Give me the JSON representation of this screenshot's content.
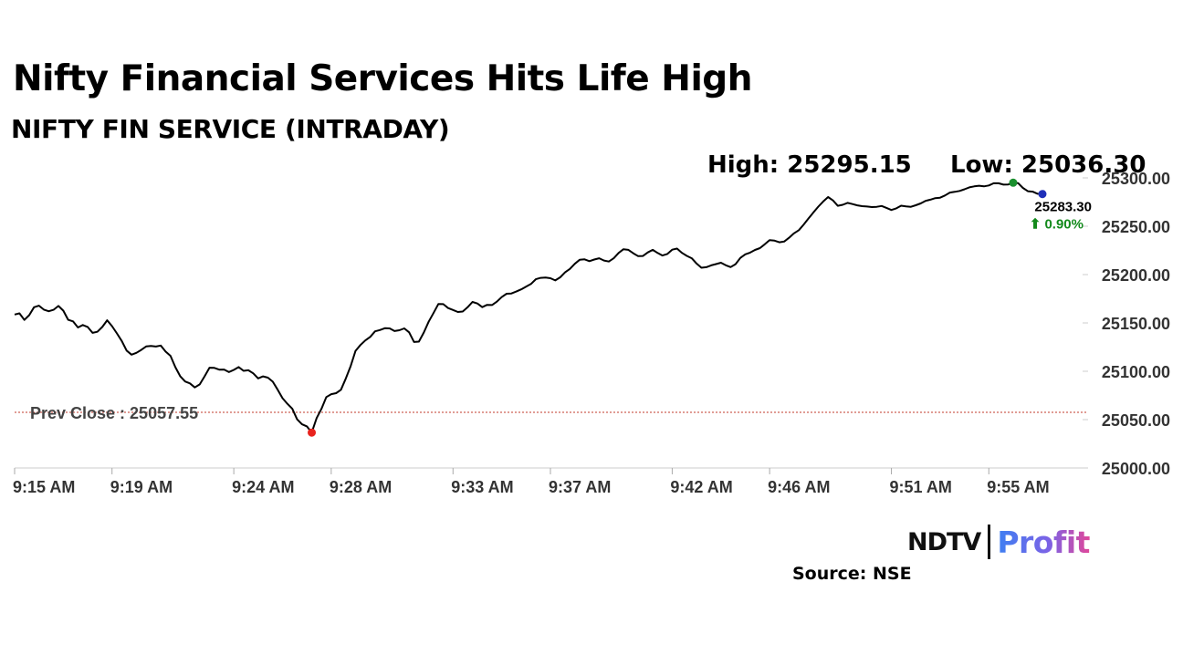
{
  "headline": "Nifty Financial Services Hits Life High",
  "chart_data": {
    "type": "line",
    "title": "NIFTY FIN SERVICE (INTRADAY)",
    "high_label": "High: 25295.15",
    "low_label": "Low: 25036.30",
    "high": 25295.15,
    "low": 25036.3,
    "last_price_label": "25283.30",
    "change_label": "⬆ 0.90%",
    "last_price": 25283.3,
    "change_pct": 0.9,
    "prev_close_label": "Prev Close : 25057.55",
    "prev_close": 25057.55,
    "ylim": [
      25000,
      25300
    ],
    "y_ticks": [
      "25300.00",
      "25250.00",
      "25200.00",
      "25150.00",
      "25100.00",
      "25050.00",
      "25000.00"
    ],
    "x_ticks": [
      "9:15 AM",
      "9:19 AM",
      "9:24 AM",
      "9:28 AM",
      "9:33 AM",
      "9:37 AM",
      "9:42 AM",
      "9:46 AM",
      "9:51 AM",
      "9:55 AM"
    ],
    "x_tick_minutes": [
      0,
      4,
      9,
      13,
      18,
      22,
      27,
      31,
      36,
      40
    ],
    "x_range_minutes": [
      0,
      44
    ],
    "grid": false,
    "colors": {
      "line": "#000000",
      "prev_close": "#c0392b",
      "low_marker": "#e8231e",
      "high_marker": "#1a8f2e",
      "last_marker": "#1f2fb8",
      "change": "#138a1c",
      "axis": "#cccccc"
    },
    "series": [
      {
        "minutes": [
          0,
          0.2,
          0.4,
          0.6,
          0.8,
          1.0,
          1.2,
          1.4,
          1.6,
          1.8,
          2.0,
          2.2,
          2.4,
          2.6,
          2.8,
          3.0,
          3.2,
          3.4,
          3.6,
          3.8,
          4.0,
          4.2,
          4.4,
          4.6,
          4.8,
          5.0,
          5.2,
          5.4,
          5.6,
          5.8,
          6.0,
          6.2,
          6.4,
          6.6,
          6.8,
          7.0,
          7.2,
          7.4,
          7.6,
          7.8,
          8.0,
          8.2,
          8.4,
          8.6,
          8.8,
          9.0,
          9.2,
          9.4,
          9.6,
          9.8,
          10.0,
          10.2,
          10.4,
          10.6,
          10.8,
          11.0,
          11.2,
          11.4,
          11.6,
          11.8,
          12.0,
          12.2,
          12.4,
          12.6,
          12.8,
          13.0,
          13.2,
          13.4,
          13.6,
          13.8,
          14.0,
          14.2,
          14.4,
          14.6,
          14.8,
          15.0,
          15.2,
          15.4,
          15.6,
          15.8,
          16.0,
          16.2,
          16.4,
          16.6,
          16.8,
          17.0,
          17.2,
          17.4,
          17.6,
          17.8,
          18.0,
          18.2,
          18.4,
          18.6,
          18.8,
          19.0,
          19.2,
          19.4,
          19.6,
          19.8,
          20.0,
          20.2,
          20.4,
          20.6,
          20.8,
          21.0,
          21.2,
          21.4,
          21.6,
          21.8,
          22.0,
          22.2,
          22.4,
          22.6,
          22.8,
          23.0,
          23.2,
          23.4,
          23.6,
          23.8,
          24.0,
          24.2,
          24.4,
          24.6,
          24.8,
          25.0,
          25.2,
          25.4,
          25.6,
          25.8,
          26.0,
          26.2,
          26.4,
          26.6,
          26.8,
          27.0,
          27.2,
          27.4,
          27.6,
          27.8,
          28.0,
          28.2,
          28.4,
          28.6,
          28.8,
          29.0,
          29.2,
          29.4,
          29.6,
          29.8,
          30.0,
          30.2,
          30.4,
          30.6,
          30.8,
          31.0,
          31.2,
          31.4,
          31.6,
          31.8,
          32.0,
          32.2,
          32.4,
          32.6,
          32.8,
          33.0,
          33.2,
          33.4,
          33.6,
          33.8,
          34.0,
          34.2,
          34.4,
          34.6,
          34.8,
          35.0,
          35.2,
          35.4,
          35.6,
          35.8,
          36.0,
          36.2,
          36.4,
          36.6,
          36.8,
          37.0,
          37.2,
          37.4,
          37.6,
          37.8,
          38.0,
          38.2,
          38.4,
          38.6,
          38.8,
          39.0,
          39.2,
          39.4,
          39.6,
          39.8,
          40.0,
          40.2,
          40.4,
          40.6,
          40.8,
          41.0,
          41.2,
          41.4,
          41.6,
          41.8,
          42.0,
          42.2,
          42.4,
          42.6,
          42.8,
          43.0,
          43.2,
          43.4,
          43.6,
          43.8,
          44.0
        ],
        "values": [
          25158.72,
          25159.94,
          25153.16,
          25158.03,
          25166.21,
          25167.81,
          25163.73,
          25162.11,
          25163.6,
          25167.54,
          25162.6,
          25153.25,
          25151.65,
          25145.32,
          25147.82,
          25145.87,
          25139.75,
          25140.81,
          25145.85,
          25152.75,
          25146.67,
          25139.14,
          25131.35,
          25121.44,
          25117.17,
          25119.03,
          25122.05,
          25125.67,
          25126.19,
          25125.61,
          25126.59,
          25120.36,
          25115.95,
          25104.25,
          25094.94,
          25089.42,
          25087.48,
          25083.33,
          25086.4,
          25094.67,
          25103.68,
          25103.45,
          25101.71,
          25101.79,
          25099.17,
          25101.4,
          25104.38,
          25100.46,
          25101.03,
          25097.87,
          25092.64,
          25094.74,
          25093.44,
          25089.29,
          25080.99,
          25072.19,
          25066.45,
          25061.18,
          25050.31,
          25045.23,
          25042.99,
          25036.59,
          25051.56,
          25061.27,
          25073.26,
          25076.32,
          25077.35,
          25080.87,
          25092.64,
          25105.45,
          25121.16,
          25127.17,
          25131.86,
          25135.58,
          25141.35,
          25142.62,
          25144.52,
          25144.33,
          25141.63,
          25142.5,
          25144.32,
          25140.3,
          25130.29,
          25130.68,
          25140.1,
          25151.18,
          25160.18,
          25169.59,
          25169.47,
          25165.35,
          25163.42,
          25161.33,
          25161.75,
          25166.22,
          25171.66,
          25170.14,
          25166.3,
          25168.65,
          25168.51,
          25172.01,
          25176.74,
          25180.19,
          25180.5,
          25182.41,
          25184.69,
          25187.53,
          25190.26,
          25195.18,
          25196.62,
          25196.88,
          25196.24,
          25193.93,
          25197.19,
          25202.28,
          25205.87,
          25211.14,
          25215.29,
          25215.73,
          25213.91,
          25215.59,
          25216.86,
          25214.5,
          25213.49,
          25216.92,
          25222.34,
          25226.26,
          25225.58,
          25222.1,
          25219.02,
          25219.2,
          25222.9,
          25225.55,
          25222.35,
          25219.76,
          25221.32,
          25225.77,
          25226.87,
          25222.49,
          25219.34,
          25216.84,
          25211.37,
          25207.06,
          25207.62,
          25209.56,
          25210.86,
          25212.31,
          25209.65,
          25207.73,
          25210.74,
          25217.26,
          25220.93,
          25222.7,
          25225.48,
          25227.35,
          25231.3,
          25235.6,
          25235.11,
          25233.4,
          25234.14,
          25238.1,
          25242.67,
          25245.91,
          25251.82,
          25258.15,
          25264.34,
          25270.33,
          25275.55,
          25280.17,
          25276.7,
          25271.13,
          25272.15,
          25274.14,
          25272.89,
          25271.64,
          25270.77,
          25270.34,
          25269.78,
          25270.09,
          25270.91,
          25268.95,
          25266.79,
          25268.48,
          25271.25,
          25270.45,
          25270.06,
          25271.67,
          25273.54,
          25276.23,
          25277.43,
          25279.02,
          25279.51,
          25281.77,
          25284.78,
          25285.52,
          25286.49,
          25288.2,
          25290.23,
          25291.27,
          25291.91,
          25291.27,
          25292.14,
          25294.41,
          25294.4,
          25293.02,
          25293.21,
          25295.03,
          25294.6,
          25289.63,
          25286.18,
          25285.75,
          25283.54,
          25283.3
        ]
      }
    ]
  }
}
